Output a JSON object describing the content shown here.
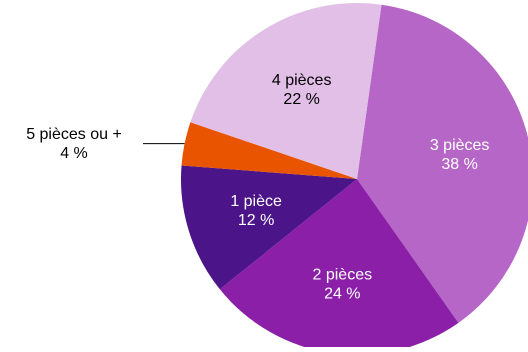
{
  "chart_data": {
    "type": "pie",
    "title": "",
    "unit": "%",
    "slices": [
      {
        "label": "3 pièces",
        "value": 38,
        "value_text": "38 %",
        "color": "#b566c7",
        "text_color": "#ffffff"
      },
      {
        "label": "2 pièces",
        "value": 24,
        "value_text": "24 %",
        "color": "#8b1fa7",
        "text_color": "#ffffff"
      },
      {
        "label": "1 pièce",
        "value": 12,
        "value_text": "12 %",
        "color": "#4b1488",
        "text_color": "#ffffff"
      },
      {
        "label": "5 pièces ou +",
        "value": 4,
        "value_text": "4 %",
        "color": "#e85400",
        "text_color": "#000000",
        "label_outside": true
      },
      {
        "label": "4 pièces",
        "value": 22,
        "value_text": "22 %",
        "color": "#e2bfe6",
        "text_color": "#000000"
      }
    ],
    "start_angle_deg": 8,
    "direction": "clockwise"
  }
}
